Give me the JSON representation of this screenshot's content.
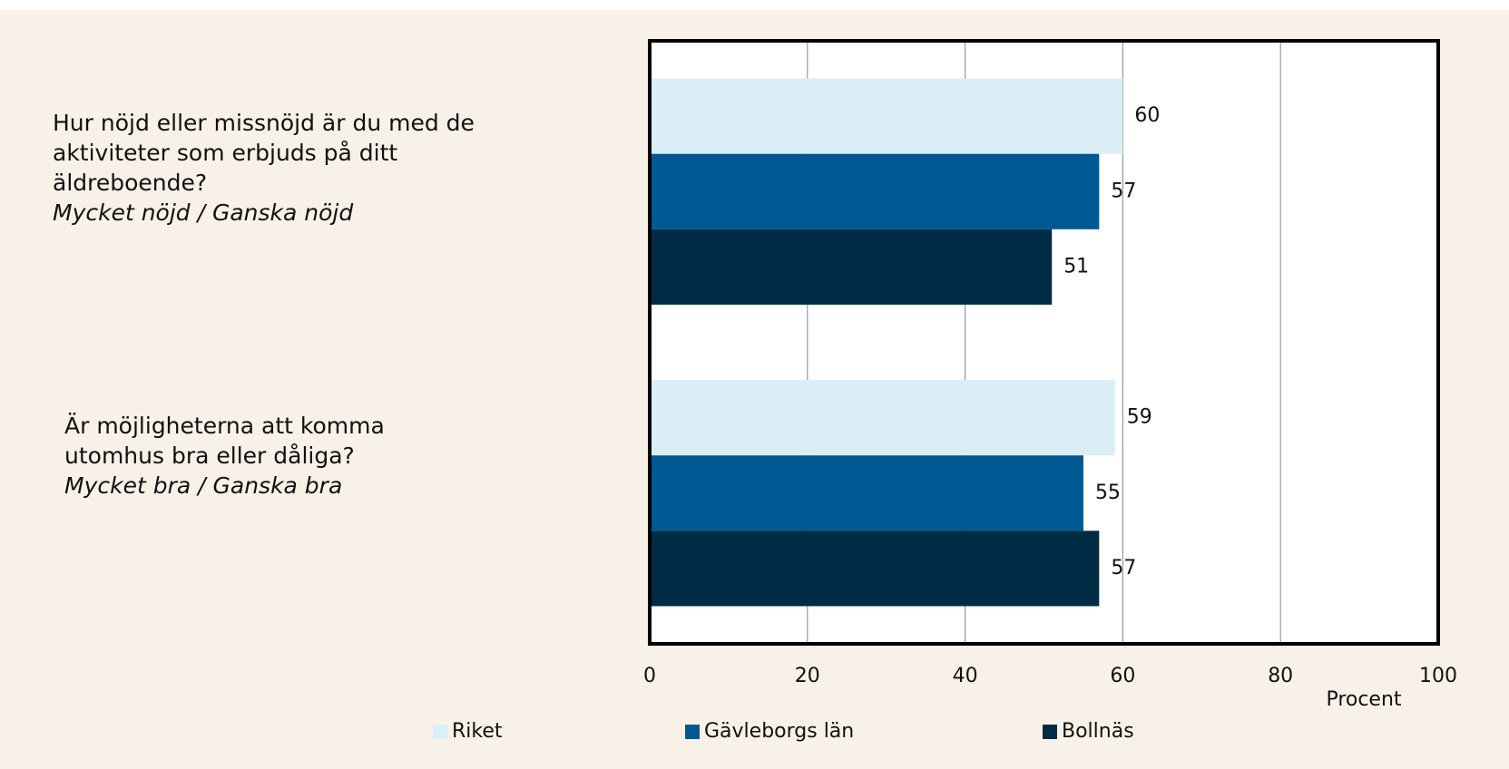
{
  "chart_data": {
    "type": "bar",
    "orientation": "horizontal",
    "categories": [
      "Hur nöjd eller missnöjd är du med de aktiviteter som erbjuds på ditt äldreboende?",
      "Är möjligheterna att komma utomhus bra eller dåliga?"
    ],
    "category_notes": [
      "Mycket nöjd / Ganska nöjd",
      "Mycket bra / Ganska bra"
    ],
    "series": [
      {
        "name": "Riket",
        "color": "#daeef6",
        "values": [
          60,
          59
        ]
      },
      {
        "name": "Gävleborgs län",
        "color": "#005893",
        "values": [
          57,
          55
        ]
      },
      {
        "name": "Bollnäs",
        "color": "#002b45",
        "values": [
          51,
          57
        ]
      }
    ],
    "xlim": [
      0,
      100
    ],
    "xticks": [
      0,
      20,
      40,
      60,
      80,
      100
    ],
    "x_label": "Procent",
    "grid": true,
    "legend": "bottom"
  }
}
